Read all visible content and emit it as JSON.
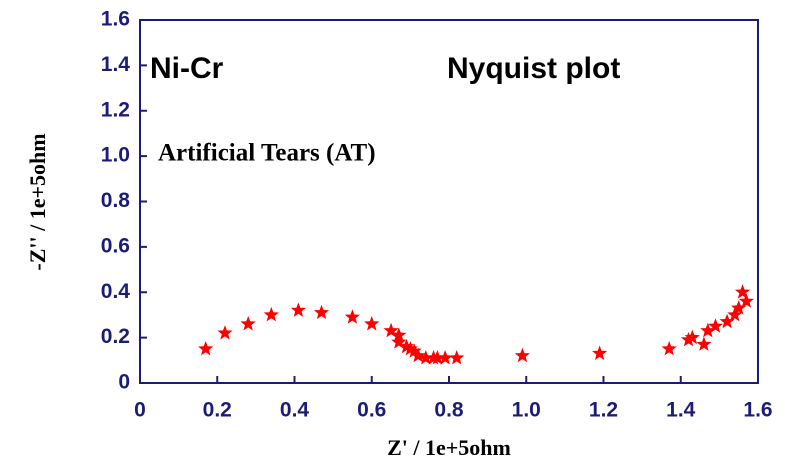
{
  "chart_data": {
    "type": "scatter",
    "title": "Nyquist plot",
    "annotations": [
      "Ni-Cr",
      "Artificial Tears (AT)"
    ],
    "xlabel": "Z' / 1e+5ohm",
    "ylabel": "-Z'' / 1e+5ohm",
    "color": "#ff0000",
    "marker": "star",
    "x": [
      0.17,
      0.22,
      0.28,
      0.34,
      0.41,
      0.47,
      0.55,
      0.6,
      0.65,
      0.67,
      0.67,
      0.69,
      0.7,
      0.71,
      0.72,
      0.74,
      0.76,
      0.77,
      0.79,
      0.82,
      0.99,
      1.19,
      1.37,
      1.42,
      1.43,
      1.46,
      1.47,
      1.49,
      1.52,
      1.54,
      1.55,
      1.57,
      1.56
    ],
    "values": [
      0.15,
      0.22,
      0.26,
      0.3,
      0.32,
      0.31,
      0.29,
      0.26,
      0.23,
      0.21,
      0.18,
      0.16,
      0.15,
      0.14,
      0.12,
      0.11,
      0.11,
      0.11,
      0.11,
      0.11,
      0.12,
      0.13,
      0.15,
      0.19,
      0.2,
      0.17,
      0.23,
      0.25,
      0.27,
      0.3,
      0.33,
      0.36,
      0.4
    ],
    "xlim": [
      0,
      1.6
    ],
    "ylim": [
      0,
      1.6
    ],
    "xticks": [
      0,
      0.2,
      0.4,
      0.6,
      0.8,
      {
        "value": 1,
        "label": "1.0"
      },
      1.2,
      1.4,
      1.6
    ],
    "yticks": [
      0,
      0.2,
      0.4,
      0.6,
      0.8,
      {
        "value": 1,
        "label": "1.0"
      },
      1.2,
      1.4,
      1.6
    ],
    "grid": false
  }
}
